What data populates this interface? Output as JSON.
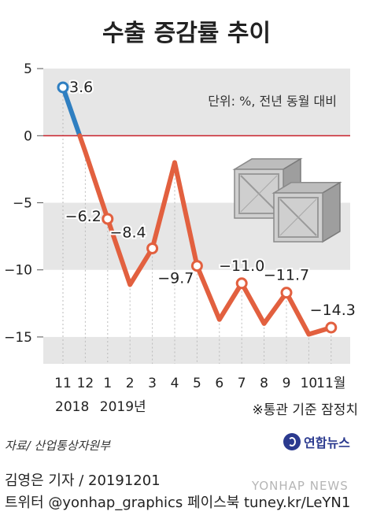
{
  "chart_data": {
    "type": "line",
    "title": "수출 증감률 추이",
    "unit_note": "단위: %, 전년 동월 대비",
    "footnote": "※통관 기준 잠정치",
    "x": [
      "11",
      "12",
      "1",
      "2",
      "3",
      "4",
      "5",
      "6",
      "7",
      "8",
      "9",
      "10",
      "11월"
    ],
    "year_labels": [
      {
        "label": "2018",
        "at": "11"
      },
      {
        "label": "2019년",
        "at": "1"
      }
    ],
    "series": [
      {
        "values": [
          3.6,
          -1.2,
          -6.2,
          -11.1,
          -8.4,
          -2.0,
          -9.7,
          -13.7,
          -11.0,
          -14.0,
          -11.7,
          -14.8,
          -14.3
        ]
      }
    ],
    "data_labels": [
      {
        "index": 0,
        "text": "3.6"
      },
      {
        "index": 2,
        "text": "-6.2"
      },
      {
        "index": 4,
        "text": "-8.4"
      },
      {
        "index": 6,
        "text": "-9.7"
      },
      {
        "index": 8,
        "text": "-11.0"
      },
      {
        "index": 10,
        "text": "-11.7"
      },
      {
        "index": 12,
        "text": "-14.3"
      }
    ],
    "y_ticks": [
      5,
      0,
      -5,
      -10,
      -15
    ],
    "ylim": [
      -17,
      5.3
    ],
    "colors": {
      "positive": "#2f7fc1",
      "negative": "#e2603f",
      "zero_line": "#c8202a",
      "band": "#e6e6e6"
    },
    "grid": "alternating horizontal bands"
  },
  "source": "자료/ 산업통상자원부",
  "logo": "연합뉴스",
  "byline": "김영은 기자 / 20191201",
  "social": "트위터 @yonhap_graphics  페이스북 tuney.kr/LeYN1",
  "watermark": "YONHAP NEWS"
}
